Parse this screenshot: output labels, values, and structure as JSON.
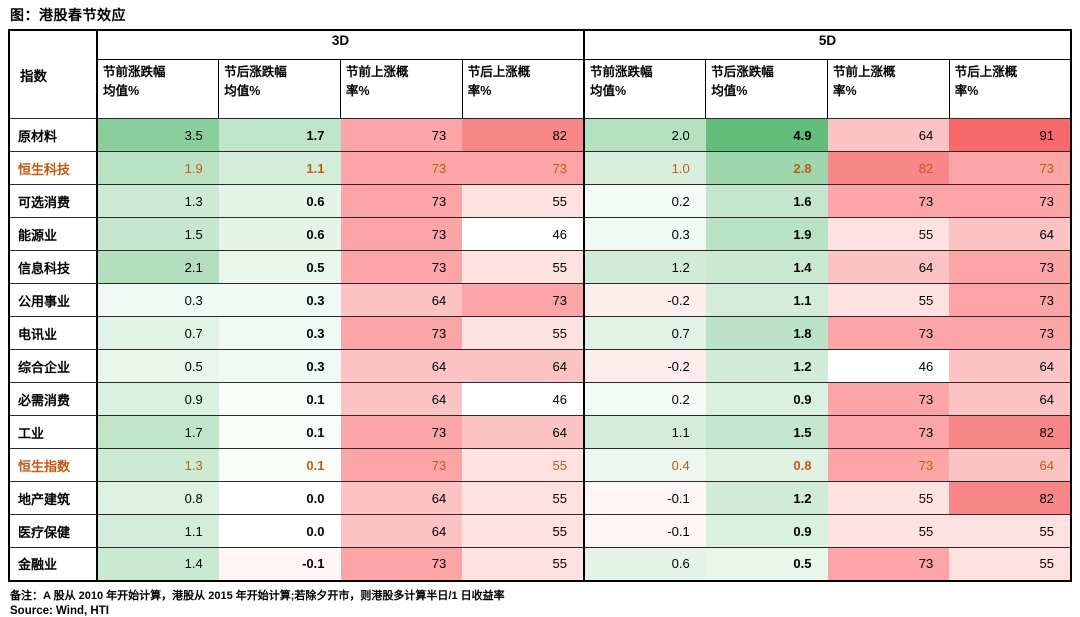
{
  "chart_data": {
    "type": "table",
    "title": "图：港股春节效应",
    "index_label": "指数",
    "groups": [
      {
        "label": "3D",
        "columns": [
          "节前涨跌幅\n均值%",
          "节后涨跌幅\n均值%",
          "节前上涨概\n率%",
          "节后上涨概\n率%"
        ]
      },
      {
        "label": "5D",
        "columns": [
          "节前涨跌幅\n均值%",
          "节后涨跌幅\n均值%",
          "节前上涨概\n率%",
          "节后上涨概\n率%"
        ]
      }
    ],
    "rows": [
      {
        "label": "原材料",
        "highlight": false,
        "values": [
          3.5,
          1.7,
          73,
          82,
          2.0,
          4.9,
          64,
          91
        ]
      },
      {
        "label": "恒生科技",
        "highlight": true,
        "values": [
          1.9,
          1.1,
          73,
          73,
          1.0,
          2.8,
          82,
          73
        ]
      },
      {
        "label": "可选消费",
        "highlight": false,
        "values": [
          1.3,
          0.6,
          73,
          55,
          0.2,
          1.6,
          73,
          73
        ]
      },
      {
        "label": "能源业",
        "highlight": false,
        "values": [
          1.5,
          0.6,
          73,
          46,
          0.3,
          1.9,
          55,
          64
        ]
      },
      {
        "label": "信息科技",
        "highlight": false,
        "values": [
          2.1,
          0.5,
          73,
          55,
          1.2,
          1.4,
          64,
          73
        ]
      },
      {
        "label": "公用事业",
        "highlight": false,
        "values": [
          0.3,
          0.3,
          64,
          73,
          -0.2,
          1.1,
          55,
          73
        ]
      },
      {
        "label": "电讯业",
        "highlight": false,
        "values": [
          0.7,
          0.3,
          73,
          55,
          0.7,
          1.8,
          73,
          73
        ]
      },
      {
        "label": "综合企业",
        "highlight": false,
        "values": [
          0.5,
          0.3,
          64,
          64,
          -0.2,
          1.2,
          46,
          64
        ]
      },
      {
        "label": "必需消费",
        "highlight": false,
        "values": [
          0.9,
          0.1,
          64,
          46,
          0.2,
          0.9,
          73,
          64
        ]
      },
      {
        "label": "工业",
        "highlight": false,
        "values": [
          1.7,
          0.1,
          73,
          64,
          1.1,
          1.5,
          73,
          82
        ]
      },
      {
        "label": "恒生指数",
        "highlight": true,
        "values": [
          1.3,
          0.1,
          73,
          55,
          0.4,
          0.8,
          73,
          64
        ]
      },
      {
        "label": "地产建筑",
        "highlight": false,
        "values": [
          0.8,
          0.0,
          64,
          55,
          -0.1,
          1.2,
          55,
          82
        ]
      },
      {
        "label": "医疗保健",
        "highlight": false,
        "values": [
          1.1,
          0.0,
          64,
          55,
          -0.1,
          0.9,
          55,
          55
        ]
      },
      {
        "label": "金融业",
        "highlight": false,
        "values": [
          1.4,
          -0.1,
          73,
          55,
          0.6,
          0.5,
          73,
          55
        ]
      }
    ],
    "notes": "备注：A 股从 2010 年开始计算，港股从 2015 年开始计算;若除夕开市，则港股多计算半日/1 日收益率",
    "source": "Source: Wind, HTI",
    "color_scale": {
      "gain_color": "#63BE7B",
      "prob_color": "#F8696B",
      "highlight_text": "#C55A11",
      "gain_white": 0,
      "gain_max": 4.9,
      "prob_white": 46,
      "prob_max": 91
    },
    "layout": {
      "legend": "none",
      "grid": "table-borders"
    }
  }
}
